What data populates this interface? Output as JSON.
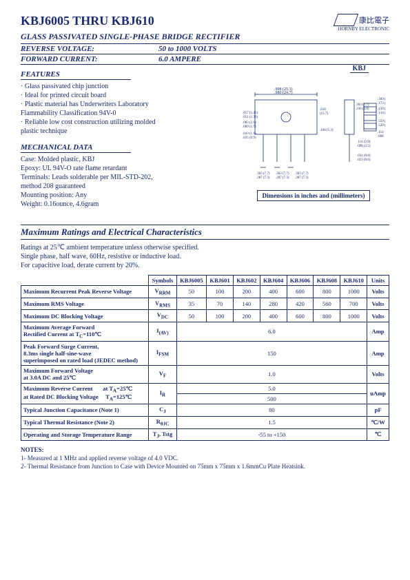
{
  "header": {
    "title": "KBJ6005 THRU KBJ610",
    "subtitle": "GLASS PASSIVATED SINGLE-PHASE BRIDGE RECTIFIER",
    "reverse_voltage_label": "REVERSE VOLTAGE:",
    "reverse_voltage_value": "50 to 1000 VOLTS",
    "forward_current_label": "FORWARD CURRENT:",
    "forward_current_value": "6.0 AMPERE",
    "logo_text": "康比電子",
    "logo_sub": "HORNBY ELECTRONIC"
  },
  "features": {
    "heading": "FEATURES",
    "items": [
      "· Glass passivated chip junction",
      "· Ideal for printed circuit board",
      "· Plastic material has Underwriters Laboratory",
      "  Flammability Classification 94V-0",
      "· Reliable low cost construction utilizing molded",
      "  plastic technique"
    ],
    "package_label": "KBJ"
  },
  "mechanical": {
    "heading": "MECHANICAL DATA",
    "lines": [
      "Case: Molded plastic, KBJ",
      "Epoxy: UL 94V-O rate flame retardant",
      "Terminals: Leads solderable per MIL-STD-202,",
      "method 208 guaranteed",
      "Mounting position: Any",
      "Weight: 0.16ounce, 4.6gram"
    ],
    "dim_caption": "Dimensions in inches and (millimeters)"
  },
  "ratings": {
    "heading": "Maximum Ratings and Electrical Characteristics",
    "notes_pre": [
      "Ratings at 25℃ ambient temperature unless otherwise specified.",
      "Single phase, half wave, 60Hz, resistive or inductive load.",
      "For capacitive load, derate current by 20%."
    ]
  },
  "table": {
    "headers": [
      "Symbols",
      "KBJ6005",
      "KBJ601",
      "KBJ602",
      "KBJ604",
      "KBJ606",
      "KBJ608",
      "KBJ610",
      "Units"
    ],
    "rows": [
      {
        "label": "Maximum Recurrent Peak Reverse Voltage",
        "symbol": "V<sub>RRM</sub>",
        "vals": [
          "50",
          "100",
          "200",
          "400",
          "600",
          "800",
          "1000"
        ],
        "unit": "Volts"
      },
      {
        "label": "Maximum RMS Voltage",
        "symbol": "V<sub>RMS</sub>",
        "vals": [
          "35",
          "70",
          "140",
          "280",
          "420",
          "560",
          "700"
        ],
        "unit": "Volts"
      },
      {
        "label": "Maximum DC Blocking Voltage",
        "symbol": "V<sub>DC</sub>",
        "vals": [
          "50",
          "100",
          "200",
          "400",
          "600",
          "800",
          "1000"
        ],
        "unit": "Volts"
      },
      {
        "label": "Maximum Average Forward<br>Rectified Current at T<sub>C</sub>=110℃",
        "symbol": "I<sub>(AV)</sub>",
        "span": "6.0",
        "unit": "Amp"
      },
      {
        "label": "Peak Forward Surge Current,<br>8.3ms single half-sine-wave<br>superimposed on rated load (JEDEC method)",
        "symbol": "I<sub>FSM</sub>",
        "span": "150",
        "unit": "Amp"
      },
      {
        "label": "Maximum Forward Voltage<br>at 3.0A DC and 25℃",
        "symbol": "V<sub>F</sub>",
        "span": "1.0",
        "unit": "Volts"
      },
      {
        "label": "Maximum Reverse Current&nbsp;&nbsp;&nbsp;&nbsp;&nbsp;&nbsp;&nbsp;at T<sub>A</sub>=25℃<br>at Rated DC Blocking Voltage&nbsp;&nbsp;&nbsp;&nbsp;&nbsp;T<sub>A</sub>=125℃",
        "symbol": "I<sub>R</sub>",
        "span2": [
          "5.0",
          "500"
        ],
        "unit": "uAmp"
      },
      {
        "label": "Typical Junction Capacitance (Note 1)",
        "symbol": "C<sub>J</sub>",
        "span": "80",
        "unit": "pF"
      },
      {
        "label": "Typical Thermal Resistance (Note 2)",
        "symbol": "R<sub>θJC</sub>",
        "span": "1.5",
        "unit": "℃/W"
      },
      {
        "label": "Operating and Storage Temperature Range",
        "symbol": "T<sub>J</sub>, Tstg",
        "span": "-55 to +150",
        "unit": "℃"
      }
    ]
  },
  "notes": {
    "heading": "NOTES:",
    "items": [
      "1- Measured at 1 MHz and applied reverse voltage of 4.0 VDC.",
      "2- Thermal Resistance from Junction to Case with Device Mounted on 75mm x 75mm x 1.6mmCu Plate Heatsink."
    ]
  }
}
